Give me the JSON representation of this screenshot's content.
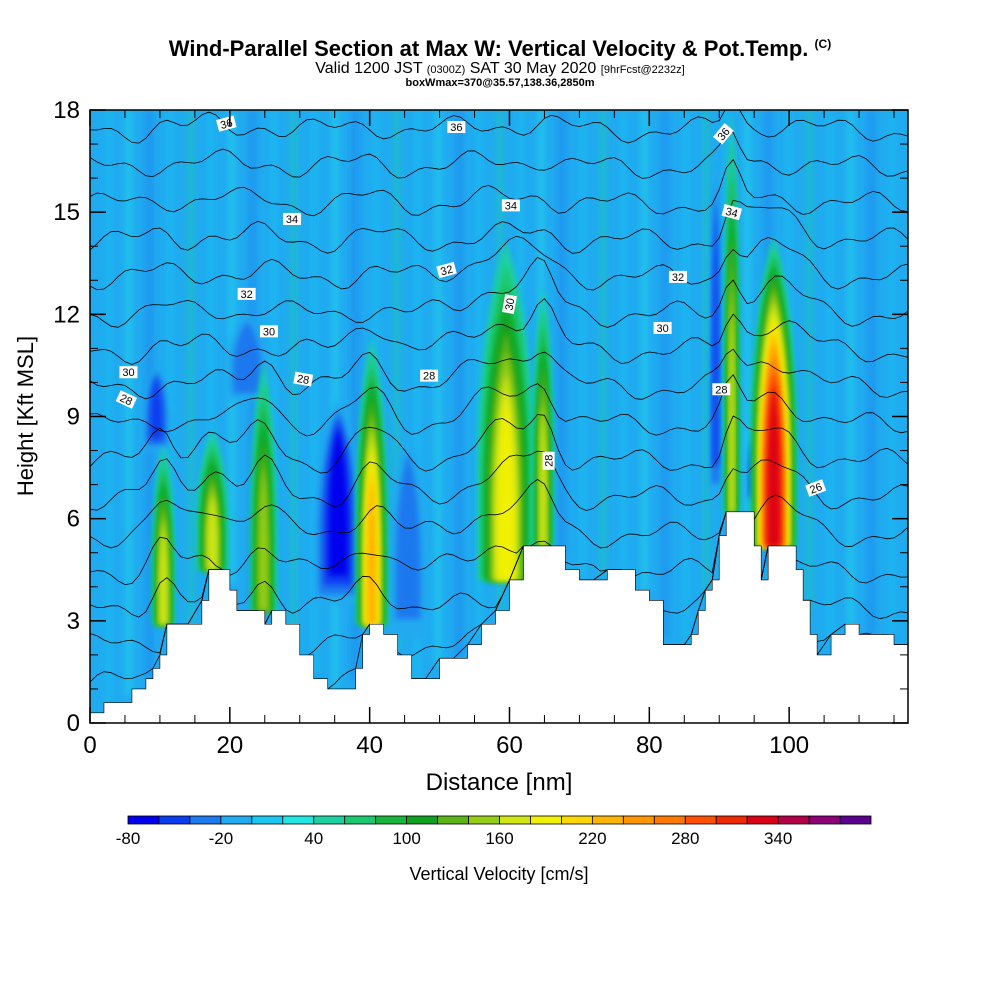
{
  "header": {
    "title": "Wind-Parallel Section at Max W: Vertical Velocity & Pot.Temp.",
    "title_mark": "(C)",
    "valid_prefix": "Valid 1200 JST",
    "valid_utc": "(0300Z)",
    "valid_date": "SAT 30 May 2020",
    "forecast": "[9hrFcst@2232z]",
    "box_info": "boxWmax=370@35.57,138.36,2850m"
  },
  "chart_data": {
    "type": "heatmap",
    "xlabel": "Distance [nm]",
    "ylabel": "Height [Kft MSL]",
    "xlim": [
      0,
      117
    ],
    "ylim": [
      0,
      18
    ],
    "x_ticks": [
      0,
      20,
      40,
      60,
      80,
      100
    ],
    "y_ticks": [
      0,
      3,
      6,
      9,
      12,
      15,
      18
    ],
    "colorbar": {
      "label": "Vertical Velocity [cm/s]",
      "tick_labels": [
        "-80",
        "-20",
        "40",
        "100",
        "160",
        "220",
        "280",
        "340"
      ],
      "levels": [
        -80,
        -60,
        -40,
        -20,
        0,
        20,
        40,
        60,
        80,
        100,
        120,
        140,
        160,
        180,
        200,
        220,
        240,
        260,
        280,
        300,
        320,
        340,
        360
      ],
      "colors": [
        "#0000ee",
        "#0a3cf0",
        "#1e78ee",
        "#20aaf0",
        "#18c8f2",
        "#20e6e6",
        "#1ad2a0",
        "#1ac870",
        "#18b43c",
        "#10a01e",
        "#5ab418",
        "#96cc14",
        "#d2e614",
        "#f0f000",
        "#ffd700",
        "#ffb400",
        "#ff9600",
        "#ff7800",
        "#ff5000",
        "#f02800",
        "#dc0014",
        "#b40046",
        "#8c0078",
        "#5a008c"
      ]
    },
    "terrain": [
      [
        0,
        0.3
      ],
      [
        2,
        0.6
      ],
      [
        4,
        0.6
      ],
      [
        6,
        1.0
      ],
      [
        8,
        1.3
      ],
      [
        9,
        1.6
      ],
      [
        10,
        2.0
      ],
      [
        11,
        2.9
      ],
      [
        14,
        2.9
      ],
      [
        16,
        3.6
      ],
      [
        17,
        4.5
      ],
      [
        19,
        4.5
      ],
      [
        20,
        3.9
      ],
      [
        21,
        3.3
      ],
      [
        24,
        3.3
      ],
      [
        25,
        2.9
      ],
      [
        26,
        3.3
      ],
      [
        28,
        2.9
      ],
      [
        30,
        2.0
      ],
      [
        32,
        1.3
      ],
      [
        34,
        1.0
      ],
      [
        37,
        1.0
      ],
      [
        38,
        1.6
      ],
      [
        39,
        2.6
      ],
      [
        40,
        2.9
      ],
      [
        42,
        2.6
      ],
      [
        44,
        2.0
      ],
      [
        46,
        1.3
      ],
      [
        48,
        1.3
      ],
      [
        50,
        1.9
      ],
      [
        52,
        1.9
      ],
      [
        54,
        2.3
      ],
      [
        56,
        2.9
      ],
      [
        58,
        3.3
      ],
      [
        60,
        4.2
      ],
      [
        62,
        5.2
      ],
      [
        66,
        5.2
      ],
      [
        68,
        4.5
      ],
      [
        70,
        4.2
      ],
      [
        72,
        4.2
      ],
      [
        74,
        4.5
      ],
      [
        76,
        4.5
      ],
      [
        78,
        3.9
      ],
      [
        80,
        3.6
      ],
      [
        82,
        2.3
      ],
      [
        85,
        2.3
      ],
      [
        86,
        2.6
      ],
      [
        87,
        3.3
      ],
      [
        88,
        3.9
      ],
      [
        89,
        4.2
      ],
      [
        90,
        5.5
      ],
      [
        91,
        6.2
      ],
      [
        94,
        6.2
      ],
      [
        95,
        5.2
      ],
      [
        96,
        4.2
      ],
      [
        97,
        5.2
      ],
      [
        99,
        5.2
      ],
      [
        101,
        4.5
      ],
      [
        102,
        3.6
      ],
      [
        103,
        2.6
      ],
      [
        104,
        2.0
      ],
      [
        106,
        2.6
      ],
      [
        108,
        2.9
      ],
      [
        110,
        2.6
      ],
      [
        114,
        2.6
      ],
      [
        115,
        2.3
      ],
      [
        117,
        2.3
      ]
    ],
    "updrafts": [
      {
        "x": 10.5,
        "y0": 2.9,
        "y1": 8.2,
        "w": 1.5,
        "peak": 150
      },
      {
        "x": 17.5,
        "y0": 4.5,
        "y1": 8.6,
        "w": 2.2,
        "peak": 140
      },
      {
        "x": 24.8,
        "y0": 3.3,
        "y1": 10.6,
        "w": 1.8,
        "peak": 130
      },
      {
        "x": 40.3,
        "y0": 2.9,
        "y1": 11.3,
        "w": 2.2,
        "peak": 200
      },
      {
        "x": 59.5,
        "y0": 4.2,
        "y1": 14.1,
        "w": 4.0,
        "peak": 165
      },
      {
        "x": 64.8,
        "y0": 5.2,
        "y1": 12.8,
        "w": 1.4,
        "peak": 140
      },
      {
        "x": 91.8,
        "y0": 6.2,
        "y1": 18.0,
        "w": 1.0,
        "peak": 140
      },
      {
        "x": 97.8,
        "y0": 5.2,
        "y1": 14.3,
        "w": 3.2,
        "peak": 305
      }
    ],
    "downdrafts": [
      {
        "x": 9.5,
        "y0": 8.0,
        "y1": 10.5,
        "w": 2.0,
        "peak": -60
      },
      {
        "x": 22.5,
        "y0": 9.5,
        "y1": 12.0,
        "w": 3.0,
        "peak": -50
      },
      {
        "x": 35.5,
        "y0": 3.5,
        "y1": 9.5,
        "w": 3.5,
        "peak": -80
      },
      {
        "x": 45.5,
        "y0": 2.5,
        "y1": 8.5,
        "w": 3.0,
        "peak": -40
      },
      {
        "x": 89.5,
        "y0": 6.5,
        "y1": 16.5,
        "w": 0.8,
        "peak": -70
      },
      {
        "x": 95.0,
        "y0": 6.5,
        "y1": 8.5,
        "w": 1.0,
        "peak": -70
      }
    ],
    "contour_labels": [
      {
        "text": "26",
        "x": 103.8,
        "y": 6.9,
        "angle": -20
      },
      {
        "text": "28",
        "x": 5.2,
        "y": 9.5,
        "angle": 25
      },
      {
        "text": "28",
        "x": 30.5,
        "y": 10.1,
        "angle": 10
      },
      {
        "text": "28",
        "x": 48.5,
        "y": 10.2,
        "angle": 0
      },
      {
        "text": "28",
        "x": 65.6,
        "y": 7.7,
        "angle": -90
      },
      {
        "text": "28",
        "x": 90.3,
        "y": 9.8,
        "angle": 0
      },
      {
        "text": "30",
        "x": 5.5,
        "y": 10.3,
        "angle": 0
      },
      {
        "text": "30",
        "x": 25.6,
        "y": 11.5,
        "angle": 0
      },
      {
        "text": "30",
        "x": 60.0,
        "y": 12.3,
        "angle": -80
      },
      {
        "text": "30",
        "x": 81.9,
        "y": 11.6,
        "angle": 0
      },
      {
        "text": "32",
        "x": 22.4,
        "y": 12.6,
        "angle": 0
      },
      {
        "text": "32",
        "x": 51.0,
        "y": 13.3,
        "angle": -15
      },
      {
        "text": "32",
        "x": 84.1,
        "y": 13.1,
        "angle": 0
      },
      {
        "text": "34",
        "x": 28.9,
        "y": 14.8,
        "angle": 0
      },
      {
        "text": "34",
        "x": 60.2,
        "y": 15.2,
        "angle": 0
      },
      {
        "text": "34",
        "x": 91.8,
        "y": 15.0,
        "angle": 15
      },
      {
        "text": "36",
        "x": 19.5,
        "y": 17.6,
        "angle": -15
      },
      {
        "text": "36",
        "x": 52.4,
        "y": 17.5,
        "angle": 0
      },
      {
        "text": "36",
        "x": 90.6,
        "y": 17.3,
        "angle": -50
      }
    ]
  }
}
